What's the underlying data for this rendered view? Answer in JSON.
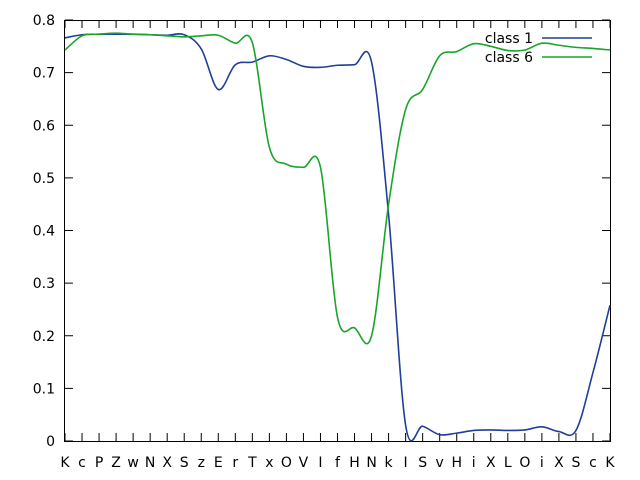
{
  "chart_data": {
    "type": "line",
    "categories": [
      "K",
      "c",
      "P",
      "Z",
      "w",
      "N",
      "X",
      "S",
      "z",
      "E",
      "r",
      "T",
      "x",
      "O",
      "V",
      "I",
      "f",
      "H",
      "N",
      "k",
      "I",
      "S",
      "v",
      "H",
      "i",
      "X",
      "L",
      "O",
      "i",
      "X",
      "S",
      "c",
      "K"
    ],
    "ylim": [
      0,
      0.8
    ],
    "yticks": [
      "0",
      "0.1",
      "0.2",
      "0.3",
      "0.4",
      "0.5",
      "0.6",
      "0.7",
      "0.8"
    ],
    "legend_position": "top-right",
    "grid": false,
    "series": [
      {
        "name": "class 1",
        "color": "#1f3f99",
        "values": [
          0.766,
          0.772,
          0.773,
          0.773,
          0.773,
          0.772,
          0.771,
          0.772,
          0.745,
          0.668,
          0.715,
          0.72,
          0.732,
          0.725,
          0.712,
          0.71,
          0.714,
          0.715,
          0.72,
          0.43,
          0.03,
          0.028,
          0.012,
          0.015,
          0.02,
          0.021,
          0.02,
          0.021,
          0.027,
          0.018,
          0.02,
          0.13,
          0.258
        ]
      },
      {
        "name": "class 6",
        "color": "#1aa52a",
        "values": [
          0.743,
          0.77,
          0.773,
          0.775,
          0.773,
          0.772,
          0.77,
          0.768,
          0.77,
          0.771,
          0.756,
          0.757,
          0.558,
          0.526,
          0.52,
          0.52,
          0.235,
          0.215,
          0.2,
          0.45,
          0.63,
          0.668,
          0.732,
          0.74,
          0.755,
          0.75,
          0.742,
          0.743,
          0.756,
          0.752,
          0.748,
          0.746,
          0.743
        ]
      }
    ]
  }
}
